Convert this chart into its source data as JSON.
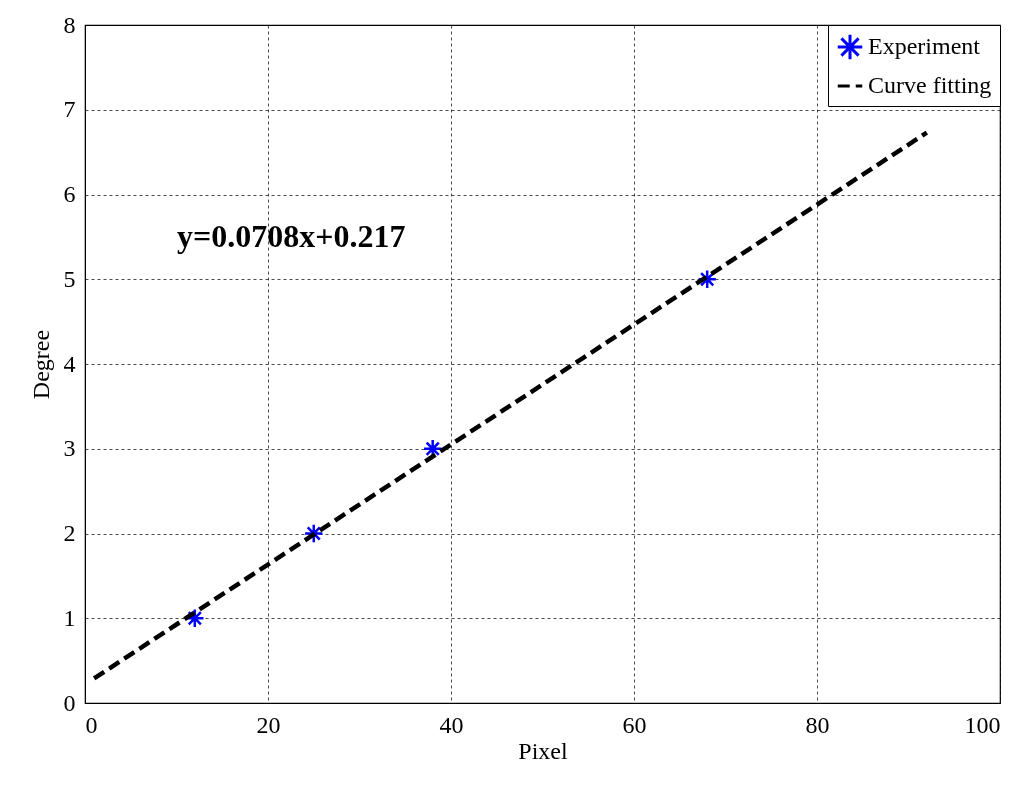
{
  "chart_data": {
    "type": "scatter",
    "xlabel": "Pixel",
    "ylabel": "Degree",
    "xlim": [
      0,
      100
    ],
    "xticks": [
      0,
      20,
      40,
      60,
      80,
      100
    ],
    "ylim": [
      0,
      8
    ],
    "yticks": [
      0,
      1,
      2,
      3,
      4,
      5,
      6,
      7,
      8
    ],
    "series": [
      {
        "name": "Experiment",
        "color": "#0000ff",
        "marker": "cross",
        "x": [
          12,
          25,
          38,
          68
        ],
        "values": [
          1,
          2,
          3,
          5
        ]
      },
      {
        "name": "Curve fitting",
        "type": "line",
        "color": "#000000",
        "line_style": "dashed",
        "x": [
          1,
          92
        ],
        "values": [
          0.29,
          6.73
        ]
      }
    ],
    "annotations": [
      "y=0.0708x+0.217"
    ],
    "grid": true,
    "legend": "top right"
  }
}
